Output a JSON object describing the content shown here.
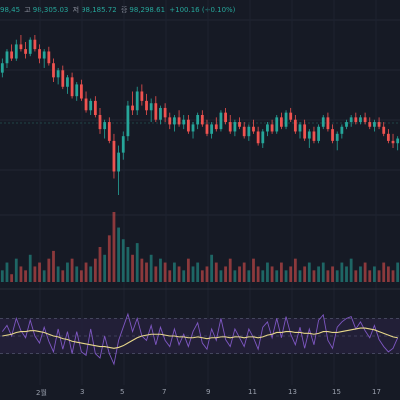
{
  "header": {
    "open_fragment": "98,45",
    "high_label": "고",
    "high_value": "98,305.03",
    "low_label": "저",
    "low_value": "98,185.72",
    "close_label": "종",
    "close_value": "98,298.61",
    "change": "+100.16 (+0.10%)"
  },
  "colors": {
    "background": "#161a25",
    "up": "#26a69a",
    "down": "#ef5350",
    "rsi_line": "#7e57c2",
    "rsi_ma": "#e8d88a",
    "rsi_band": "#23203a"
  },
  "x_axis": {
    "labels": [
      "2월",
      "3",
      "5",
      "7",
      "9",
      "11",
      "13",
      "15",
      "17"
    ]
  },
  "chart_data": [
    {
      "type": "candlestick",
      "title": "",
      "series": [
        {
          "name": "",
          "values": [
            [
              98.0,
              98.6,
              97.8,
              98.4
            ],
            [
              98.4,
              99.0,
              98.2,
              98.9
            ],
            [
              98.9,
              99.2,
              98.5,
              98.6
            ],
            [
              98.6,
              99.4,
              98.5,
              99.2
            ],
            [
              99.2,
              99.6,
              98.9,
              99.0
            ],
            [
              99.0,
              99.3,
              98.6,
              98.8
            ],
            [
              98.8,
              99.5,
              98.7,
              99.4
            ],
            [
              99.4,
              99.6,
              98.9,
              99.0
            ],
            [
              99.0,
              99.2,
              98.4,
              98.6
            ],
            [
              98.6,
              99.0,
              98.2,
              98.9
            ],
            [
              98.9,
              99.1,
              98.3,
              98.4
            ],
            [
              98.4,
              98.6,
              97.6,
              97.8
            ],
            [
              97.8,
              98.2,
              97.5,
              98.1
            ],
            [
              98.1,
              98.3,
              97.3,
              97.4
            ],
            [
              97.4,
              97.9,
              97.1,
              97.8
            ],
            [
              97.8,
              98.0,
              96.9,
              97.0
            ],
            [
              97.0,
              97.6,
              96.8,
              97.5
            ],
            [
              97.5,
              97.7,
              96.8,
              96.9
            ],
            [
              96.9,
              97.2,
              96.3,
              96.4
            ],
            [
              96.4,
              96.9,
              96.2,
              96.8
            ],
            [
              96.8,
              97.0,
              96.1,
              96.2
            ],
            [
              96.2,
              96.5,
              95.4,
              95.6
            ],
            [
              95.6,
              96.0,
              95.2,
              95.9
            ],
            [
              95.9,
              96.1,
              95.0,
              95.1
            ],
            [
              95.1,
              95.4,
              93.5,
              93.8
            ],
            [
              93.8,
              94.9,
              92.8,
              94.6
            ],
            [
              94.6,
              95.5,
              94.3,
              95.3
            ],
            [
              95.3,
              96.8,
              95.1,
              96.6
            ],
            [
              96.6,
              97.2,
              96.2,
              96.4
            ],
            [
              96.4,
              97.4,
              96.2,
              97.2
            ],
            [
              97.2,
              97.5,
              96.6,
              96.8
            ],
            [
              96.8,
              97.1,
              96.2,
              96.4
            ],
            [
              96.4,
              96.9,
              95.9,
              96.7
            ],
            [
              96.7,
              97.0,
              95.9,
              96.0
            ],
            [
              96.0,
              96.6,
              95.8,
              96.5
            ],
            [
              96.5,
              96.7,
              95.9,
              96.1
            ],
            [
              96.1,
              96.3,
              95.6,
              95.8
            ],
            [
              95.8,
              96.2,
              95.5,
              96.1
            ],
            [
              96.1,
              96.4,
              95.7,
              95.8
            ],
            [
              95.8,
              96.2,
              95.6,
              96.0
            ],
            [
              96.0,
              96.2,
              95.4,
              95.5
            ],
            [
              95.5,
              95.9,
              95.2,
              95.8
            ],
            [
              95.8,
              96.3,
              95.6,
              96.2
            ],
            [
              96.2,
              96.4,
              95.7,
              95.8
            ],
            [
              95.8,
              96.0,
              95.3,
              95.4
            ],
            [
              95.4,
              95.9,
              95.2,
              95.8
            ],
            [
              95.8,
              96.1,
              95.5,
              95.6
            ],
            [
              95.6,
              96.4,
              95.5,
              96.3
            ],
            [
              96.3,
              96.5,
              95.8,
              95.9
            ],
            [
              95.9,
              96.2,
              95.4,
              95.5
            ],
            [
              95.5,
              96.0,
              95.3,
              95.9
            ],
            [
              95.9,
              96.1,
              95.6,
              95.7
            ],
            [
              95.7,
              95.9,
              95.2,
              95.3
            ],
            [
              95.3,
              95.8,
              95.1,
              95.7
            ],
            [
              95.7,
              96.0,
              95.4,
              95.5
            ],
            [
              95.5,
              95.7,
              94.9,
              95.0
            ],
            [
              95.0,
              95.6,
              94.8,
              95.5
            ],
            [
              95.5,
              95.9,
              95.3,
              95.8
            ],
            [
              95.8,
              96.0,
              95.4,
              95.5
            ],
            [
              95.5,
              96.2,
              95.4,
              96.1
            ],
            [
              96.1,
              96.3,
              95.6,
              95.7
            ],
            [
              95.7,
              96.4,
              95.6,
              96.3
            ],
            [
              96.3,
              96.5,
              95.9,
              96.0
            ],
            [
              96.0,
              96.2,
              95.4,
              95.5
            ],
            [
              95.5,
              95.9,
              95.2,
              95.8
            ],
            [
              95.8,
              96.0,
              95.1,
              95.2
            ],
            [
              95.2,
              95.6,
              94.8,
              95.5
            ],
            [
              95.5,
              95.7,
              95.0,
              95.1
            ],
            [
              95.1,
              95.8,
              95.0,
              95.7
            ],
            [
              95.7,
              96.2,
              95.6,
              96.1
            ],
            [
              96.1,
              96.3,
              95.5,
              95.6
            ],
            [
              95.6,
              95.8,
              95.0,
              95.1
            ],
            [
              95.1,
              95.5,
              94.7,
              95.4
            ],
            [
              95.4,
              95.8,
              95.2,
              95.7
            ],
            [
              95.7,
              96.0,
              95.6,
              95.9
            ],
            [
              95.9,
              96.2,
              95.7,
              96.1
            ],
            [
              96.1,
              96.3,
              95.8,
              95.9
            ],
            [
              95.9,
              96.2,
              95.8,
              96.1
            ],
            [
              96.1,
              96.3,
              95.8,
              95.9
            ],
            [
              95.9,
              96.1,
              95.6,
              95.7
            ],
            [
              95.7,
              96.0,
              95.5,
              95.9
            ],
            [
              95.9,
              96.1,
              95.6,
              95.7
            ],
            [
              95.7,
              95.9,
              95.3,
              95.4
            ],
            [
              95.4,
              95.6,
              95.0,
              95.1
            ],
            [
              95.1,
              95.4,
              94.8,
              95.0
            ],
            [
              95.0,
              95.3,
              94.7,
              95.2
            ]
          ]
        }
      ],
      "volume": [
        3,
        5,
        2,
        6,
        4,
        3,
        7,
        4,
        5,
        3,
        6,
        8,
        4,
        3,
        5,
        6,
        4,
        3,
        5,
        4,
        6,
        9,
        7,
        12,
        18,
        14,
        11,
        9,
        7,
        10,
        6,
        5,
        7,
        4,
        6,
        5,
        3,
        5,
        4,
        3,
        6,
        4,
        5,
        3,
        4,
        7,
        5,
        3,
        4,
        6,
        3,
        4,
        5,
        3,
        6,
        4,
        3,
        5,
        4,
        3,
        5,
        3,
        4,
        6,
        3,
        4,
        5,
        3,
        4,
        5,
        3,
        4,
        3,
        5,
        4,
        6,
        3,
        4,
        5,
        3,
        4,
        3,
        5,
        4,
        3,
        5
      ],
      "rsi": {
        "values": [
          55,
          62,
          50,
          70,
          56,
          48,
          68,
          50,
          42,
          60,
          44,
          32,
          58,
          35,
          55,
          30,
          55,
          32,
          28,
          58,
          30,
          25,
          50,
          30,
          18,
          45,
          60,
          75,
          55,
          70,
          50,
          45,
          62,
          40,
          60,
          45,
          38,
          58,
          40,
          52,
          38,
          55,
          65,
          42,
          35,
          58,
          45,
          70,
          46,
          38,
          58,
          48,
          38,
          58,
          48,
          35,
          60,
          66,
          48,
          70,
          48,
          72,
          52,
          40,
          60,
          36,
          58,
          40,
          68,
          74,
          45,
          36,
          60,
          66,
          70,
          72,
          58,
          66,
          56,
          48,
          62,
          46,
          38,
          32,
          36,
          48
        ],
        "ma": [
          50,
          51,
          52,
          54,
          55,
          55,
          56,
          56,
          55,
          54,
          52,
          50,
          49,
          47,
          46,
          44,
          43,
          42,
          41,
          40,
          39,
          38,
          38,
          37,
          36,
          37,
          39,
          42,
          45,
          48,
          50,
          51,
          52,
          52,
          52,
          51,
          50,
          50,
          49,
          49,
          48,
          48,
          49,
          48,
          47,
          48,
          48,
          49,
          49,
          48,
          49,
          49,
          48,
          49,
          49,
          48,
          49,
          51,
          52,
          54,
          54,
          55,
          55,
          54,
          54,
          53,
          53,
          52,
          53,
          55,
          55,
          54,
          54,
          55,
          56,
          57,
          58,
          59,
          59,
          58,
          57,
          55,
          53,
          51,
          49,
          48
        ]
      }
    }
  ]
}
